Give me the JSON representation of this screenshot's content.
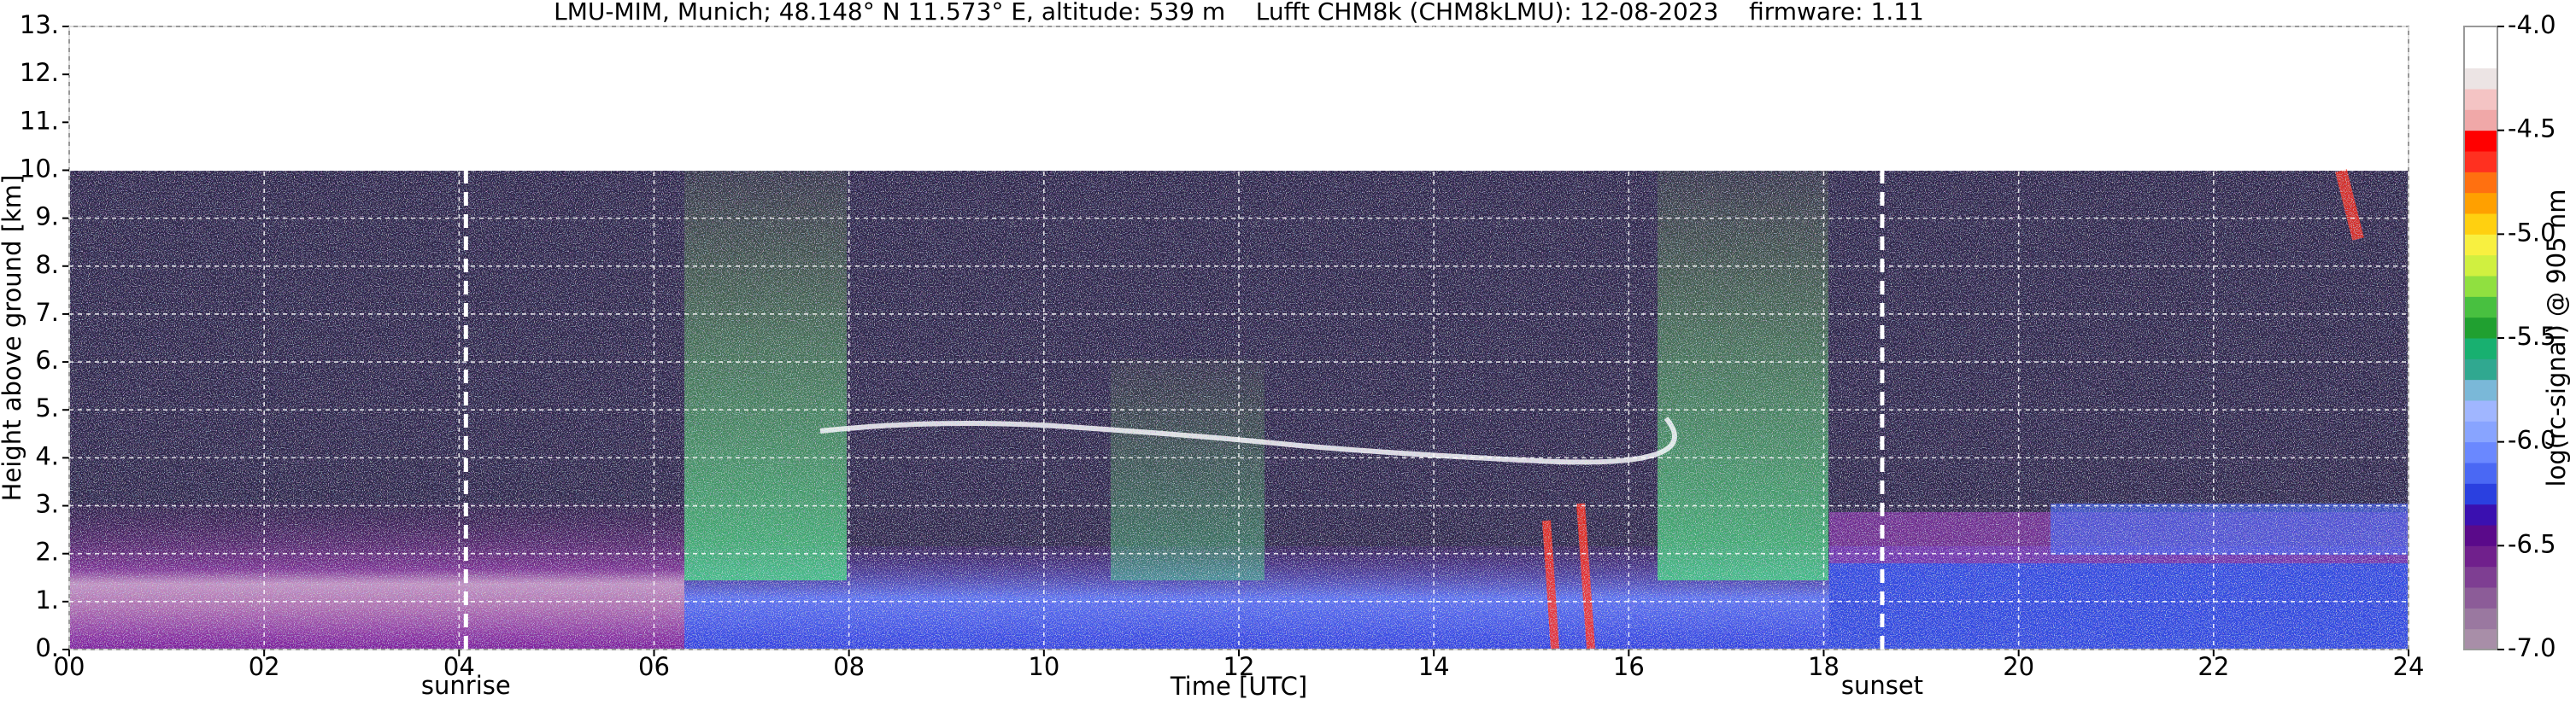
{
  "chart_data": {
    "type": "heatmap",
    "title": "LMU-MIM, Munich; 48.148° N 11.573° E, altitude: 539 m    Lufft CHM8k (CHM8kLMU): 12-08-2023    firmware: 1.11",
    "x_label": "Time [UTC]",
    "y_label": "Height above ground [km]",
    "xlim": [
      0,
      24
    ],
    "xticks": [
      {
        "value": 0,
        "label": "00"
      },
      {
        "value": 2,
        "label": "02"
      },
      {
        "value": 4,
        "label": "04"
      },
      {
        "value": 6,
        "label": "06"
      },
      {
        "value": 8,
        "label": "08"
      },
      {
        "value": 10,
        "label": "10"
      },
      {
        "value": 12,
        "label": "12"
      },
      {
        "value": 14,
        "label": "14"
      },
      {
        "value": 16,
        "label": "16"
      },
      {
        "value": 18,
        "label": "18"
      },
      {
        "value": 20,
        "label": "20"
      },
      {
        "value": 22,
        "label": "22"
      },
      {
        "value": 24,
        "label": "24"
      }
    ],
    "ylim": [
      0,
      13
    ],
    "yticks": [
      {
        "value": 0,
        "label": "0."
      },
      {
        "value": 1,
        "label": "1."
      },
      {
        "value": 2,
        "label": "2."
      },
      {
        "value": 3,
        "label": "3."
      },
      {
        "value": 4,
        "label": "4."
      },
      {
        "value": 5,
        "label": "5."
      },
      {
        "value": 6,
        "label": "6."
      },
      {
        "value": 7,
        "label": "7."
      },
      {
        "value": 8,
        "label": "8."
      },
      {
        "value": 9,
        "label": "9."
      },
      {
        "value": 10,
        "label": "10."
      },
      {
        "value": 11,
        "label": "11."
      },
      {
        "value": 12,
        "label": "12."
      },
      {
        "value": 13,
        "label": "13."
      }
    ],
    "grid": true,
    "annotations": [
      {
        "text": "sunrise",
        "x": 4.07
      },
      {
        "text": "sunset",
        "x": 18.6
      }
    ],
    "colorbar": {
      "label": "log(rc-signal) @ 905 nm",
      "lim": [
        -7,
        -4
      ],
      "ticks": [
        {
          "value": -7,
          "label": "-7.0"
        },
        {
          "value": -6.5,
          "label": "-6.5"
        },
        {
          "value": -6,
          "label": "-6.0"
        },
        {
          "value": -5.5,
          "label": "-5.5"
        },
        {
          "value": -5,
          "label": "-5.0"
        },
        {
          "value": -4.5,
          "label": "-4.5"
        },
        {
          "value": -4,
          "label": "-4.0"
        }
      ],
      "colors": [
        "#a88ea8",
        "#9a78a0",
        "#8c5c98",
        "#7e3e92",
        "#70208c",
        "#5a0a8a",
        "#3a10b0",
        "#2a40e0",
        "#4a68f4",
        "#6a88ff",
        "#88a4ff",
        "#a0b6ff",
        "#7ab8d8",
        "#30a890",
        "#18b070",
        "#20a030",
        "#48c040",
        "#90e040",
        "#d0f040",
        "#f8f040",
        "#ffd010",
        "#ffa000",
        "#ff7010",
        "#ff3020",
        "#ff0000",
        "#f0a8a8",
        "#f4c4c4",
        "#ece4e4",
        "#ffffff",
        "#ffffff"
      ]
    }
  }
}
